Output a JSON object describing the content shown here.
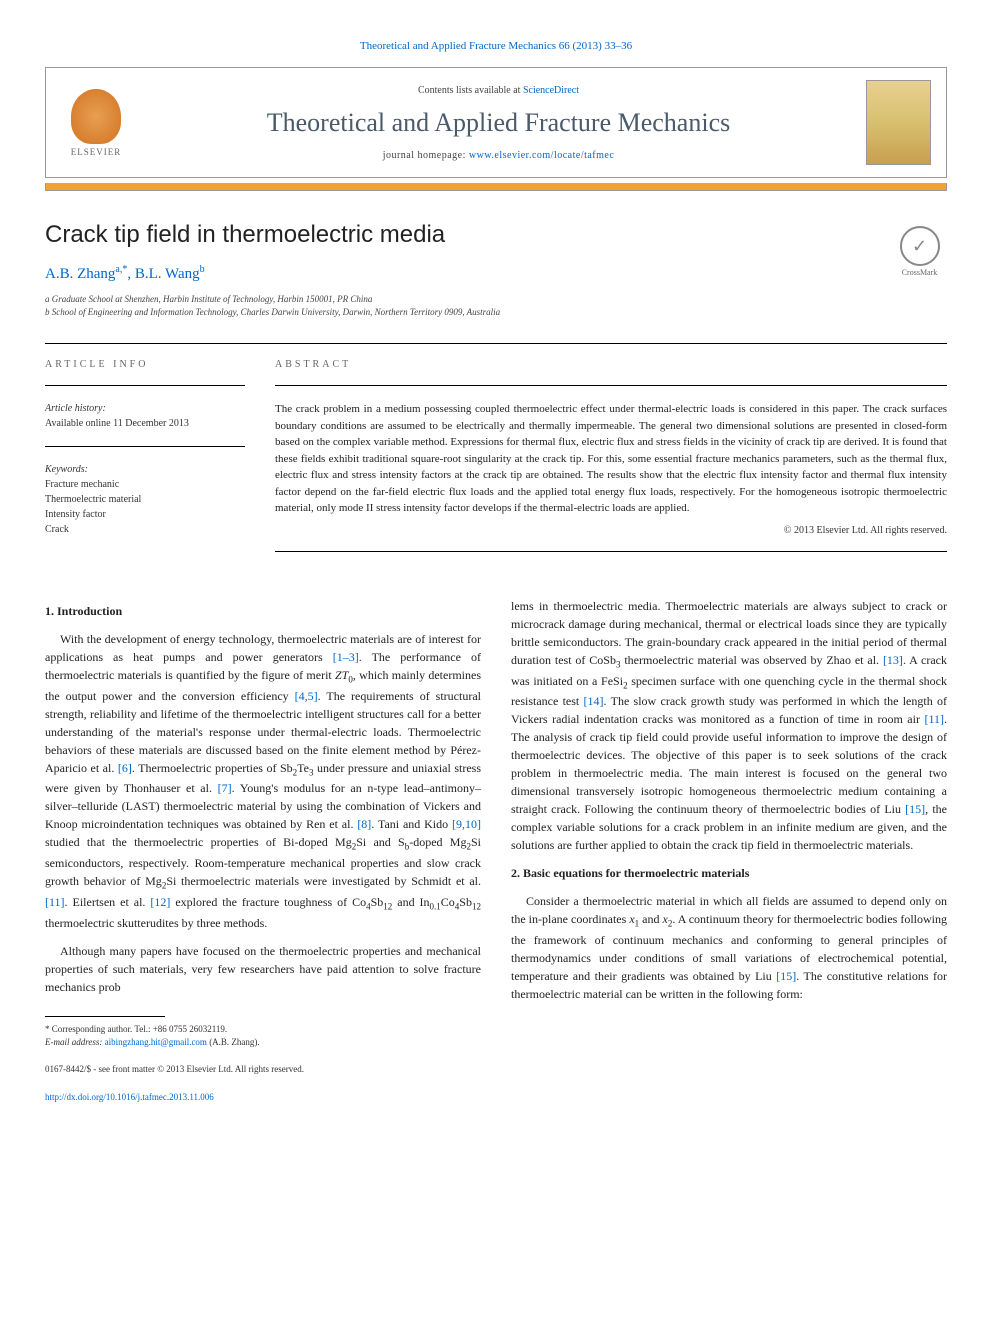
{
  "journal_ref": {
    "prefix": "Theoretical and Applied Fracture Mechanics 66 (2013) 33–36",
    "link_text": "Theoretical and Applied Fracture Mechanics 66 (2013) 33–36"
  },
  "header": {
    "contents_prefix": "Contents lists available at ",
    "contents_link": "ScienceDirect",
    "journal_title": "Theoretical and Applied Fracture Mechanics",
    "homepage_prefix": "journal homepage: ",
    "homepage_link": "www.elsevier.com/locate/tafmec",
    "elsevier_label": "ELSEVIER"
  },
  "article": {
    "title": "Crack tip field in thermoelectric media",
    "crossmark_label": "CrossMark",
    "authors_html": "A.B. Zhang",
    "author1_sup": "a,",
    "author1_star": "*",
    "author2": ", B.L. Wang",
    "author2_sup": "b",
    "affiliations": [
      "a Graduate School at Shenzhen, Harbin Institute of Technology, Harbin 150001, PR China",
      "b School of Engineering and Information Technology, Charles Darwin University, Darwin, Northern Territory 0909, Australia"
    ]
  },
  "meta": {
    "info_heading": "ARTICLE INFO",
    "history_label": "Article history:",
    "history_text": "Available online 11 December 2013",
    "keywords_label": "Keywords:",
    "keywords": [
      "Fracture mechanic",
      "Thermoelectric material",
      "Intensity factor",
      "Crack"
    ]
  },
  "abstract": {
    "heading": "ABSTRACT",
    "text": "The crack problem in a medium possessing coupled thermoelectric effect under thermal-electric loads is considered in this paper. The crack surfaces boundary conditions are assumed to be electrically and thermally impermeable. The general two dimensional solutions are presented in closed-form based on the complex variable method. Expressions for thermal flux, electric flux and stress fields in the vicinity of crack tip are derived. It is found that these fields exhibit traditional square-root singularity at the crack tip. For this, some essential fracture mechanics parameters, such as the thermal flux, electric flux and stress intensity factors at the crack tip are obtained. The results show that the electric flux intensity factor and thermal flux intensity factor depend on the far-field electric flux loads and the applied total energy flux loads, respectively. For the homogeneous isotropic thermoelectric material, only mode II stress intensity factor develops if the thermal-electric loads are applied.",
    "copyright": "© 2013 Elsevier Ltd. All rights reserved."
  },
  "sections": {
    "intro_heading": "1. Introduction",
    "intro_p1_a": "With the development of energy technology, thermoelectric materials are of interest for applications as heat pumps and power generators ",
    "intro_ref1": "[1–3]",
    "intro_p1_b": ". The performance of thermoelectric materials is quantified by the figure of merit ",
    "intro_zt": "ZT",
    "intro_zt_sub": "0",
    "intro_p1_c": ", which mainly determines the output power and the conversion efficiency ",
    "intro_ref2": "[4,5]",
    "intro_p1_d": ". The requirements of structural strength, reliability and lifetime of the thermoelectric intelligent structures call for a better understanding of the material's response under thermal-electric loads. Thermoelectric behaviors of these materials are discussed based on the finite element method by Pérez-Aparicio et al. ",
    "intro_ref3": "[6]",
    "intro_p1_e": ". Thermoelectric properties of Sb",
    "intro_sb_sub": "2",
    "intro_p1_f": "Te",
    "intro_te_sub": "3",
    "intro_p1_g": " under pressure and uniaxial stress were given by Thonhauser et al. ",
    "intro_ref4": "[7]",
    "intro_p1_h": ". Young's modulus for an n-type lead–antimony–silver–telluride (LAST) thermoelectric material by using the combination of Vickers and Knoop microindentation techniques was obtained by Ren et al. ",
    "intro_ref5": "[8]",
    "intro_p1_i": ". Tani and Kido ",
    "intro_ref6": "[9,10]",
    "intro_p1_j": " studied that the thermoelectric properties of Bi-doped Mg",
    "intro_mg_sub1": "2",
    "intro_p1_k": "Si and S",
    "intro_s_sub": "b",
    "intro_p1_l": "-doped Mg",
    "intro_mg_sub2": "2",
    "intro_p1_m": "Si semiconductors, respectively. Room-temperature mechanical properties and slow crack growth behavior of Mg",
    "intro_mg_sub3": "2",
    "intro_p1_n": "Si thermoelectric materials were investigated by Schmidt et al. ",
    "intro_ref7": "[11]",
    "intro_p1_o": ". Eilertsen et al. ",
    "intro_ref8": "[12]",
    "intro_p1_p": " explored the fracture toughness of Co",
    "intro_co_sub1": "4",
    "intro_p1_q": "Sb",
    "intro_sb2_sub": "12",
    "intro_p1_r": " and In",
    "intro_in_sub": "0.1",
    "intro_p1_s": "Co",
    "intro_co_sub2": "4",
    "intro_p1_t": "Sb",
    "intro_sb3_sub": "12",
    "intro_p1_u": " thermoelectric skutterudites by three methods.",
    "intro_p2": "Although many papers have focused on the thermoelectric properties and mechanical properties of such materials, very few researchers have paid attention to solve fracture mechanics prob",
    "col2_p1_a": "lems in thermoelectric media. Thermoelectric materials are always subject to crack or microcrack damage during mechanical, thermal or electrical loads since they are typically brittle semiconductors. The grain-boundary crack appeared in the initial period of thermal duration test of CoSb",
    "col2_cosb_sub": "3",
    "col2_p1_b": " thermoelectric material was observed by Zhao et al. ",
    "col2_ref1": "[13]",
    "col2_p1_c": ". A crack was initiated on a FeSi",
    "col2_fesi_sub": "2",
    "col2_p1_d": " specimen surface with one quenching cycle in the thermal shock resistance test ",
    "col2_ref2": "[14]",
    "col2_p1_e": ". The slow crack growth study was performed in which the length of Vickers radial indentation cracks was monitored as a function of time in room air ",
    "col2_ref3": "[11]",
    "col2_p1_f": ". The analysis of crack tip field could provide useful information to improve the design of thermoelectric devices. The objective of this paper is to seek solutions of the crack problem in thermoelectric media. The main interest is focused on the general two dimensional transversely isotropic homogeneous thermoelectric medium containing a straight crack. Following the continuum theory of thermoelectric bodies of Liu ",
    "col2_ref4": "[15]",
    "col2_p1_g": ", the complex variable solutions for a crack problem in an infinite medium are given, and the solutions are further applied to obtain the crack tip field in thermoelectric materials.",
    "sec2_heading": "2. Basic equations for thermoelectric materials",
    "sec2_p1_a": "Consider a thermoelectric material in which all fields are assumed to depend only on the in-plane coordinates ",
    "sec2_x1": "x",
    "sec2_x1_sub": "1",
    "sec2_p1_b": " and ",
    "sec2_x2": "x",
    "sec2_x2_sub": "2",
    "sec2_p1_c": ". A continuum theory for thermoelectric bodies following the framework of continuum mechanics and conforming to general principles of thermodynamics under conditions of small variations of electrochemical potential, temperature and their gradients was obtained by Liu ",
    "sec2_ref1": "[15]",
    "sec2_p1_d": ". The constitutive relations for thermoelectric material can be written in the following form:"
  },
  "footnote": {
    "corr_label": "* Corresponding author. Tel.: +86 0755 26032119.",
    "email_label": "E-mail address: ",
    "email": "aibingzhang.hit@gmail.com",
    "email_suffix": " (A.B. Zhang)."
  },
  "footer": {
    "issn": "0167-8442/$ - see front matter © 2013 Elsevier Ltd. All rights reserved.",
    "doi": "http://dx.doi.org/10.1016/j.tafmec.2013.11.006"
  },
  "colors": {
    "link": "#0066cc",
    "orange_bar": "#f5a030",
    "journal_title": "#4a5a6a"
  }
}
